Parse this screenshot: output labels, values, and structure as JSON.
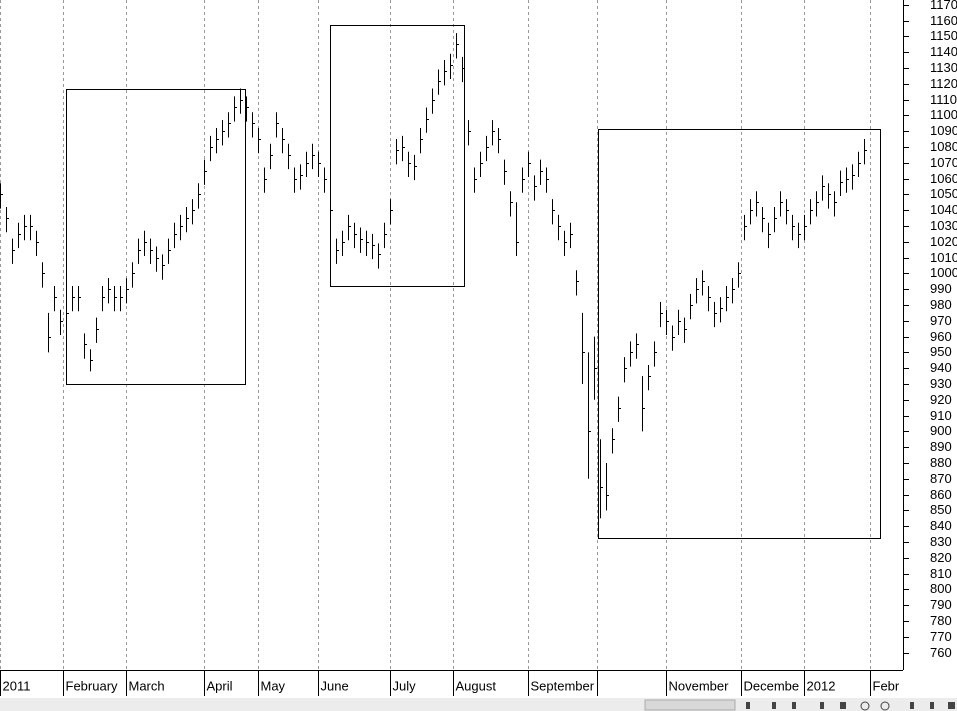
{
  "chart_data": {
    "type": "ohlc",
    "xlim": [
      0,
      301
    ],
    "ylim": [
      749,
      1173
    ],
    "xticks": [
      {
        "value": 0,
        "label": "2011"
      },
      {
        "value": 21,
        "label": "February"
      },
      {
        "value": 42,
        "label": "March"
      },
      {
        "value": 68,
        "label": "April"
      },
      {
        "value": 86,
        "label": "May"
      },
      {
        "value": 106,
        "label": "June"
      },
      {
        "value": 130,
        "label": "July"
      },
      {
        "value": 151,
        "label": "August"
      },
      {
        "value": 176,
        "label": "September"
      },
      {
        "value": 199,
        "label": null
      },
      {
        "value": 222,
        "label": "November"
      },
      {
        "value": 247,
        "label": "Decembe"
      },
      {
        "value": 268,
        "label": "2012"
      },
      {
        "value": 290,
        "label": "Febr"
      }
    ],
    "yticks": [
      760,
      770,
      780,
      790,
      800,
      810,
      820,
      830,
      840,
      850,
      860,
      870,
      880,
      890,
      900,
      910,
      920,
      930,
      940,
      950,
      960,
      970,
      980,
      990,
      1000,
      1010,
      1020,
      1030,
      1040,
      1050,
      1060,
      1070,
      1080,
      1090,
      1100,
      1110,
      1120,
      1130,
      1140,
      1150,
      1160,
      1170
    ],
    "grid": true,
    "color": "#000000",
    "x": [
      0,
      2,
      4,
      6,
      8,
      10,
      12,
      14,
      16,
      18,
      20,
      22,
      24,
      26,
      28,
      30,
      32,
      34,
      36,
      38,
      40,
      42,
      44,
      46,
      48,
      50,
      52,
      54,
      56,
      58,
      60,
      62,
      64,
      66,
      68,
      70,
      72,
      74,
      76,
      78,
      80,
      82,
      84,
      86,
      88,
      90,
      92,
      94,
      96,
      98,
      100,
      102,
      104,
      106,
      108,
      110,
      112,
      114,
      116,
      118,
      120,
      122,
      124,
      126,
      128,
      130,
      132,
      134,
      136,
      138,
      140,
      142,
      144,
      146,
      148,
      150,
      152,
      154,
      156,
      158,
      160,
      162,
      164,
      166,
      168,
      170,
      172,
      174,
      176,
      178,
      180,
      182,
      184,
      186,
      188,
      190,
      192,
      194,
      196,
      198,
      200,
      202,
      204,
      206,
      208,
      210,
      212,
      214,
      216,
      218,
      220,
      222,
      224,
      226,
      228,
      230,
      232,
      234,
      236,
      238,
      240,
      242,
      244,
      246,
      248,
      250,
      252,
      254,
      256,
      258,
      260,
      262,
      264,
      266,
      268,
      270,
      272,
      274,
      276,
      278,
      280,
      282,
      284,
      286,
      288
    ],
    "high": [
      1057,
      1042,
      1022,
      1032,
      1037,
      1037,
      1027,
      1007,
      975,
      992,
      977,
      982,
      992,
      992,
      962,
      952,
      972,
      992,
      997,
      992,
      992,
      997,
      1007,
      1022,
      1027,
      1022,
      1017,
      1012,
      1022,
      1032,
      1037,
      1042,
      1047,
      1057,
      1072,
      1087,
      1092,
      1097,
      1102,
      1112,
      1117,
      1112,
      1102,
      1092,
      1067,
      1082,
      1102,
      1092,
      1082,
      1067,
      1069,
      1077,
      1082,
      1077,
      1067,
      1047,
      1022,
      1027,
      1037,
      1032,
      1029,
      1027,
      1025,
      1019,
      1032,
      1047,
      1085,
      1087,
      1077,
      1075,
      1092,
      1105,
      1117,
      1129,
      1135,
      1139,
      1152,
      1137,
      1097,
      1067,
      1077,
      1087,
      1097,
      1092,
      1072,
      1052,
      1045,
      1067,
      1077,
      1062,
      1072,
      1067,
      1047,
      1037,
      1027,
      1032,
      1002,
      975,
      950,
      960,
      895,
      880,
      902,
      922,
      947,
      957,
      962,
      935,
      942,
      957,
      982,
      977,
      967,
      977,
      972,
      987,
      997,
      1002,
      992,
      982,
      985,
      992,
      997,
      1007,
      1037,
      1047,
      1052,
      1042,
      1032,
      1042,
      1052,
      1047,
      1037,
      1032,
      1037,
      1047,
      1052,
      1062,
      1057,
      1052,
      1065,
      1067,
      1069,
      1077,
      1085
    ],
    "low": [
      1041,
      1026,
      1006,
      1016,
      1021,
      1021,
      1011,
      991,
      950,
      976,
      961,
      966,
      976,
      976,
      946,
      938,
      956,
      976,
      981,
      976,
      976,
      981,
      991,
      1006,
      1011,
      1006,
      1001,
      996,
      1006,
      1016,
      1021,
      1026,
      1031,
      1041,
      1056,
      1071,
      1076,
      1081,
      1086,
      1096,
      1101,
      1096,
      1086,
      1076,
      1051,
      1066,
      1086,
      1076,
      1066,
      1051,
      1053,
      1061,
      1066,
      1061,
      1051,
      1031,
      1006,
      1011,
      1021,
      1016,
      1013,
      1011,
      1009,
      1003,
      1016,
      1031,
      1069,
      1071,
      1061,
      1059,
      1076,
      1089,
      1101,
      1113,
      1119,
      1123,
      1136,
      1121,
      1081,
      1051,
      1061,
      1071,
      1081,
      1076,
      1056,
      1036,
      1011,
      1051,
      1061,
      1046,
      1056,
      1051,
      1031,
      1021,
      1011,
      1016,
      986,
      930,
      870,
      920,
      845,
      850,
      886,
      906,
      931,
      941,
      946,
      900,
      926,
      941,
      966,
      961,
      951,
      961,
      956,
      971,
      981,
      986,
      976,
      966,
      969,
      976,
      981,
      991,
      1021,
      1031,
      1036,
      1026,
      1016,
      1026,
      1036,
      1031,
      1021,
      1016,
      1021,
      1031,
      1036,
      1046,
      1041,
      1036,
      1049,
      1051,
      1053,
      1061,
      1069
    ],
    "close": [
      1050,
      1035,
      1015,
      1025,
      1030,
      1030,
      1020,
      1000,
      960,
      985,
      970,
      975,
      985,
      985,
      955,
      945,
      965,
      985,
      990,
      985,
      985,
      990,
      1000,
      1015,
      1020,
      1015,
      1010,
      1005,
      1015,
      1025,
      1030,
      1035,
      1040,
      1050,
      1065,
      1080,
      1085,
      1090,
      1095,
      1105,
      1110,
      1105,
      1095,
      1085,
      1060,
      1075,
      1095,
      1085,
      1075,
      1060,
      1062,
      1070,
      1075,
      1070,
      1060,
      1040,
      1015,
      1020,
      1030,
      1025,
      1022,
      1020,
      1018,
      1012,
      1025,
      1040,
      1078,
      1080,
      1070,
      1068,
      1085,
      1098,
      1110,
      1122,
      1128,
      1132,
      1145,
      1130,
      1090,
      1060,
      1070,
      1080,
      1090,
      1085,
      1065,
      1045,
      1020,
      1060,
      1070,
      1055,
      1065,
      1060,
      1040,
      1030,
      1020,
      1025,
      995,
      950,
      900,
      940,
      865,
      860,
      895,
      915,
      940,
      950,
      955,
      915,
      935,
      950,
      975,
      970,
      960,
      970,
      965,
      980,
      990,
      995,
      985,
      975,
      978,
      985,
      990,
      1000,
      1030,
      1040,
      1045,
      1035,
      1025,
      1035,
      1045,
      1040,
      1030,
      1025,
      1030,
      1040,
      1045,
      1055,
      1050,
      1045,
      1058,
      1060,
      1062,
      1070,
      1078
    ]
  }
}
